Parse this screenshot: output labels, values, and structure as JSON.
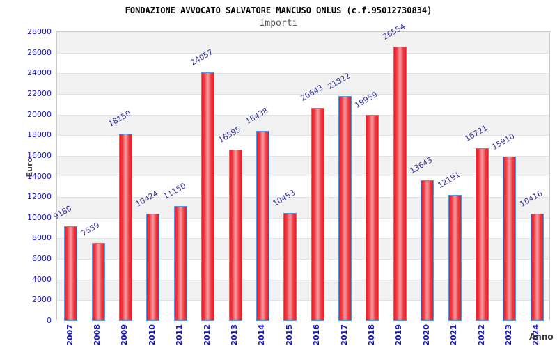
{
  "title": "FONDAZIONE AVVOCATO SALVATORE MANCUSO ONLUS (c.f.95012730834)",
  "subtitle": "Importi",
  "chart_data": {
    "type": "bar",
    "title": "FONDAZIONE AVVOCATO SALVATORE MANCUSO ONLUS (c.f.95012730834)",
    "subtitle": "Importi",
    "xlabel": "Anno",
    "ylabel": "Euro",
    "categories": [
      "2007",
      "2008",
      "2009",
      "2010",
      "2011",
      "2012",
      "2013",
      "2014",
      "2015",
      "2016",
      "2017",
      "2018",
      "2019",
      "2020",
      "2021",
      "2022",
      "2023",
      "2024"
    ],
    "values": [
      9180,
      7559,
      18150,
      10424,
      11150,
      24057,
      16595,
      18438,
      10453,
      20643,
      21822,
      19959,
      26554,
      13643,
      12191,
      16721,
      15910,
      10416
    ],
    "ylim": [
      0,
      28000
    ],
    "ytick_step": 2000,
    "grid": true,
    "legend": false,
    "bands_alternating": true
  },
  "colors": {
    "bar_fill_edge": "#ed1c24",
    "bar_fill_center": "#f59da3",
    "bar_border": "#4d9be6",
    "tick_label_blue": "#1515cc",
    "value_label": "#333399",
    "axis_title_gray": "#444444",
    "band_gray": "#f1f1f1",
    "band_white": "#ffffff",
    "plot_border": "#c9c9c9",
    "gridline": "#e2e2e2"
  }
}
